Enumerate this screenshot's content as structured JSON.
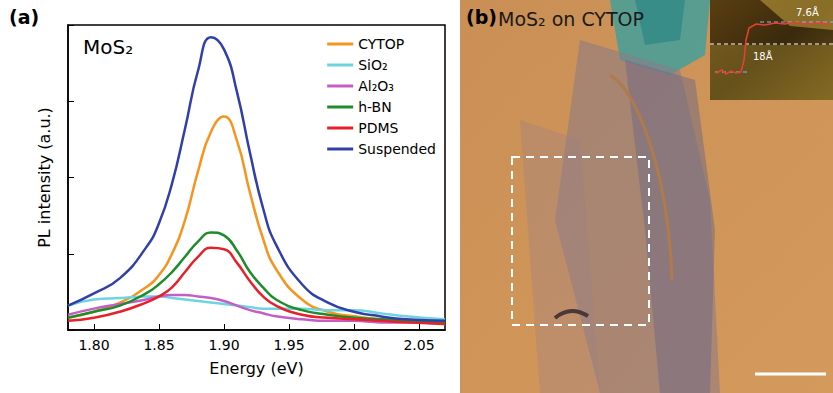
{
  "chart_data": {
    "type": "line",
    "panel_label": "(a)",
    "title": "MoS₂",
    "x_label": "Energy (eV)",
    "y_label": "PL intensity (a.u.)",
    "x": [
      1.78,
      1.8,
      1.82,
      1.84,
      1.85,
      1.86,
      1.87,
      1.88,
      1.89,
      1.9,
      1.91,
      1.92,
      1.93,
      1.94,
      1.96,
      1.98,
      2.0,
      2.02,
      2.04,
      2.07
    ],
    "series": [
      {
        "name": "CYTOP",
        "color": "#f7941d",
        "values": [
          4,
          6,
          9,
          14,
          18,
          25,
          36,
          52,
          65,
          70,
          62,
          45,
          30,
          20,
          10,
          6,
          4.5,
          3.5,
          3,
          2.5
        ]
      },
      {
        "name": "SiO₂",
        "color": "#6fd3e0",
        "values": [
          8,
          10,
          10.5,
          11,
          11,
          10.5,
          10,
          9.5,
          9,
          8.5,
          8,
          7.5,
          7,
          7,
          7,
          6.5,
          6.5,
          5.5,
          4.5,
          3.5
        ]
      },
      {
        "name": "Al₂O₃",
        "color": "#c45ec4",
        "values": [
          5,
          7,
          8.5,
          10,
          11,
          11.5,
          11.5,
          11,
          10.5,
          9.5,
          8,
          6.5,
          5.5,
          4.5,
          3.5,
          3,
          3,
          2.5,
          2.5,
          2
        ]
      },
      {
        "name": "h-BN",
        "color": "#1e8c2a",
        "values": [
          4,
          6,
          8,
          12,
          15,
          19,
          24,
          29,
          32,
          31,
          26,
          19,
          14,
          10,
          6.5,
          5,
          4,
          3.5,
          3,
          2.5
        ]
      },
      {
        "name": "PDMS",
        "color": "#e8202a",
        "values": [
          3,
          4,
          6,
          9,
          11,
          14,
          19,
          24,
          27,
          26.5,
          22,
          16,
          11,
          8,
          5,
          4,
          3.5,
          3,
          2.5,
          2
        ]
      },
      {
        "name": "Suspended",
        "color": "#3040a8",
        "values": [
          8,
          12,
          17,
          27,
          35,
          48,
          66,
          85,
          96,
          92,
          78,
          58,
          40,
          28,
          15,
          9,
          6,
          4.5,
          3.5,
          3
        ]
      }
    ],
    "xlim": [
      1.78,
      2.07
    ],
    "xticks": [
      {
        "value": 1.8,
        "label": "1.80"
      },
      {
        "value": 1.85,
        "label": "1.85"
      },
      {
        "value": 1.9,
        "label": "1.90"
      },
      {
        "value": 1.95,
        "label": "1.95"
      },
      {
        "value": 2.0,
        "label": "2.00"
      },
      {
        "value": 2.05,
        "label": "2.05"
      }
    ],
    "ylim": [
      0,
      100
    ],
    "yticks": [
      0,
      25,
      50,
      75,
      100
    ],
    "tick_labels": "x",
    "grid": false,
    "legend": "upper right"
  },
  "image_panel": {
    "label": "(b)",
    "title": "MoS₂ on CYTOP",
    "inset": {
      "annotations": [
        "7.6Å",
        "18Å"
      ]
    }
  }
}
